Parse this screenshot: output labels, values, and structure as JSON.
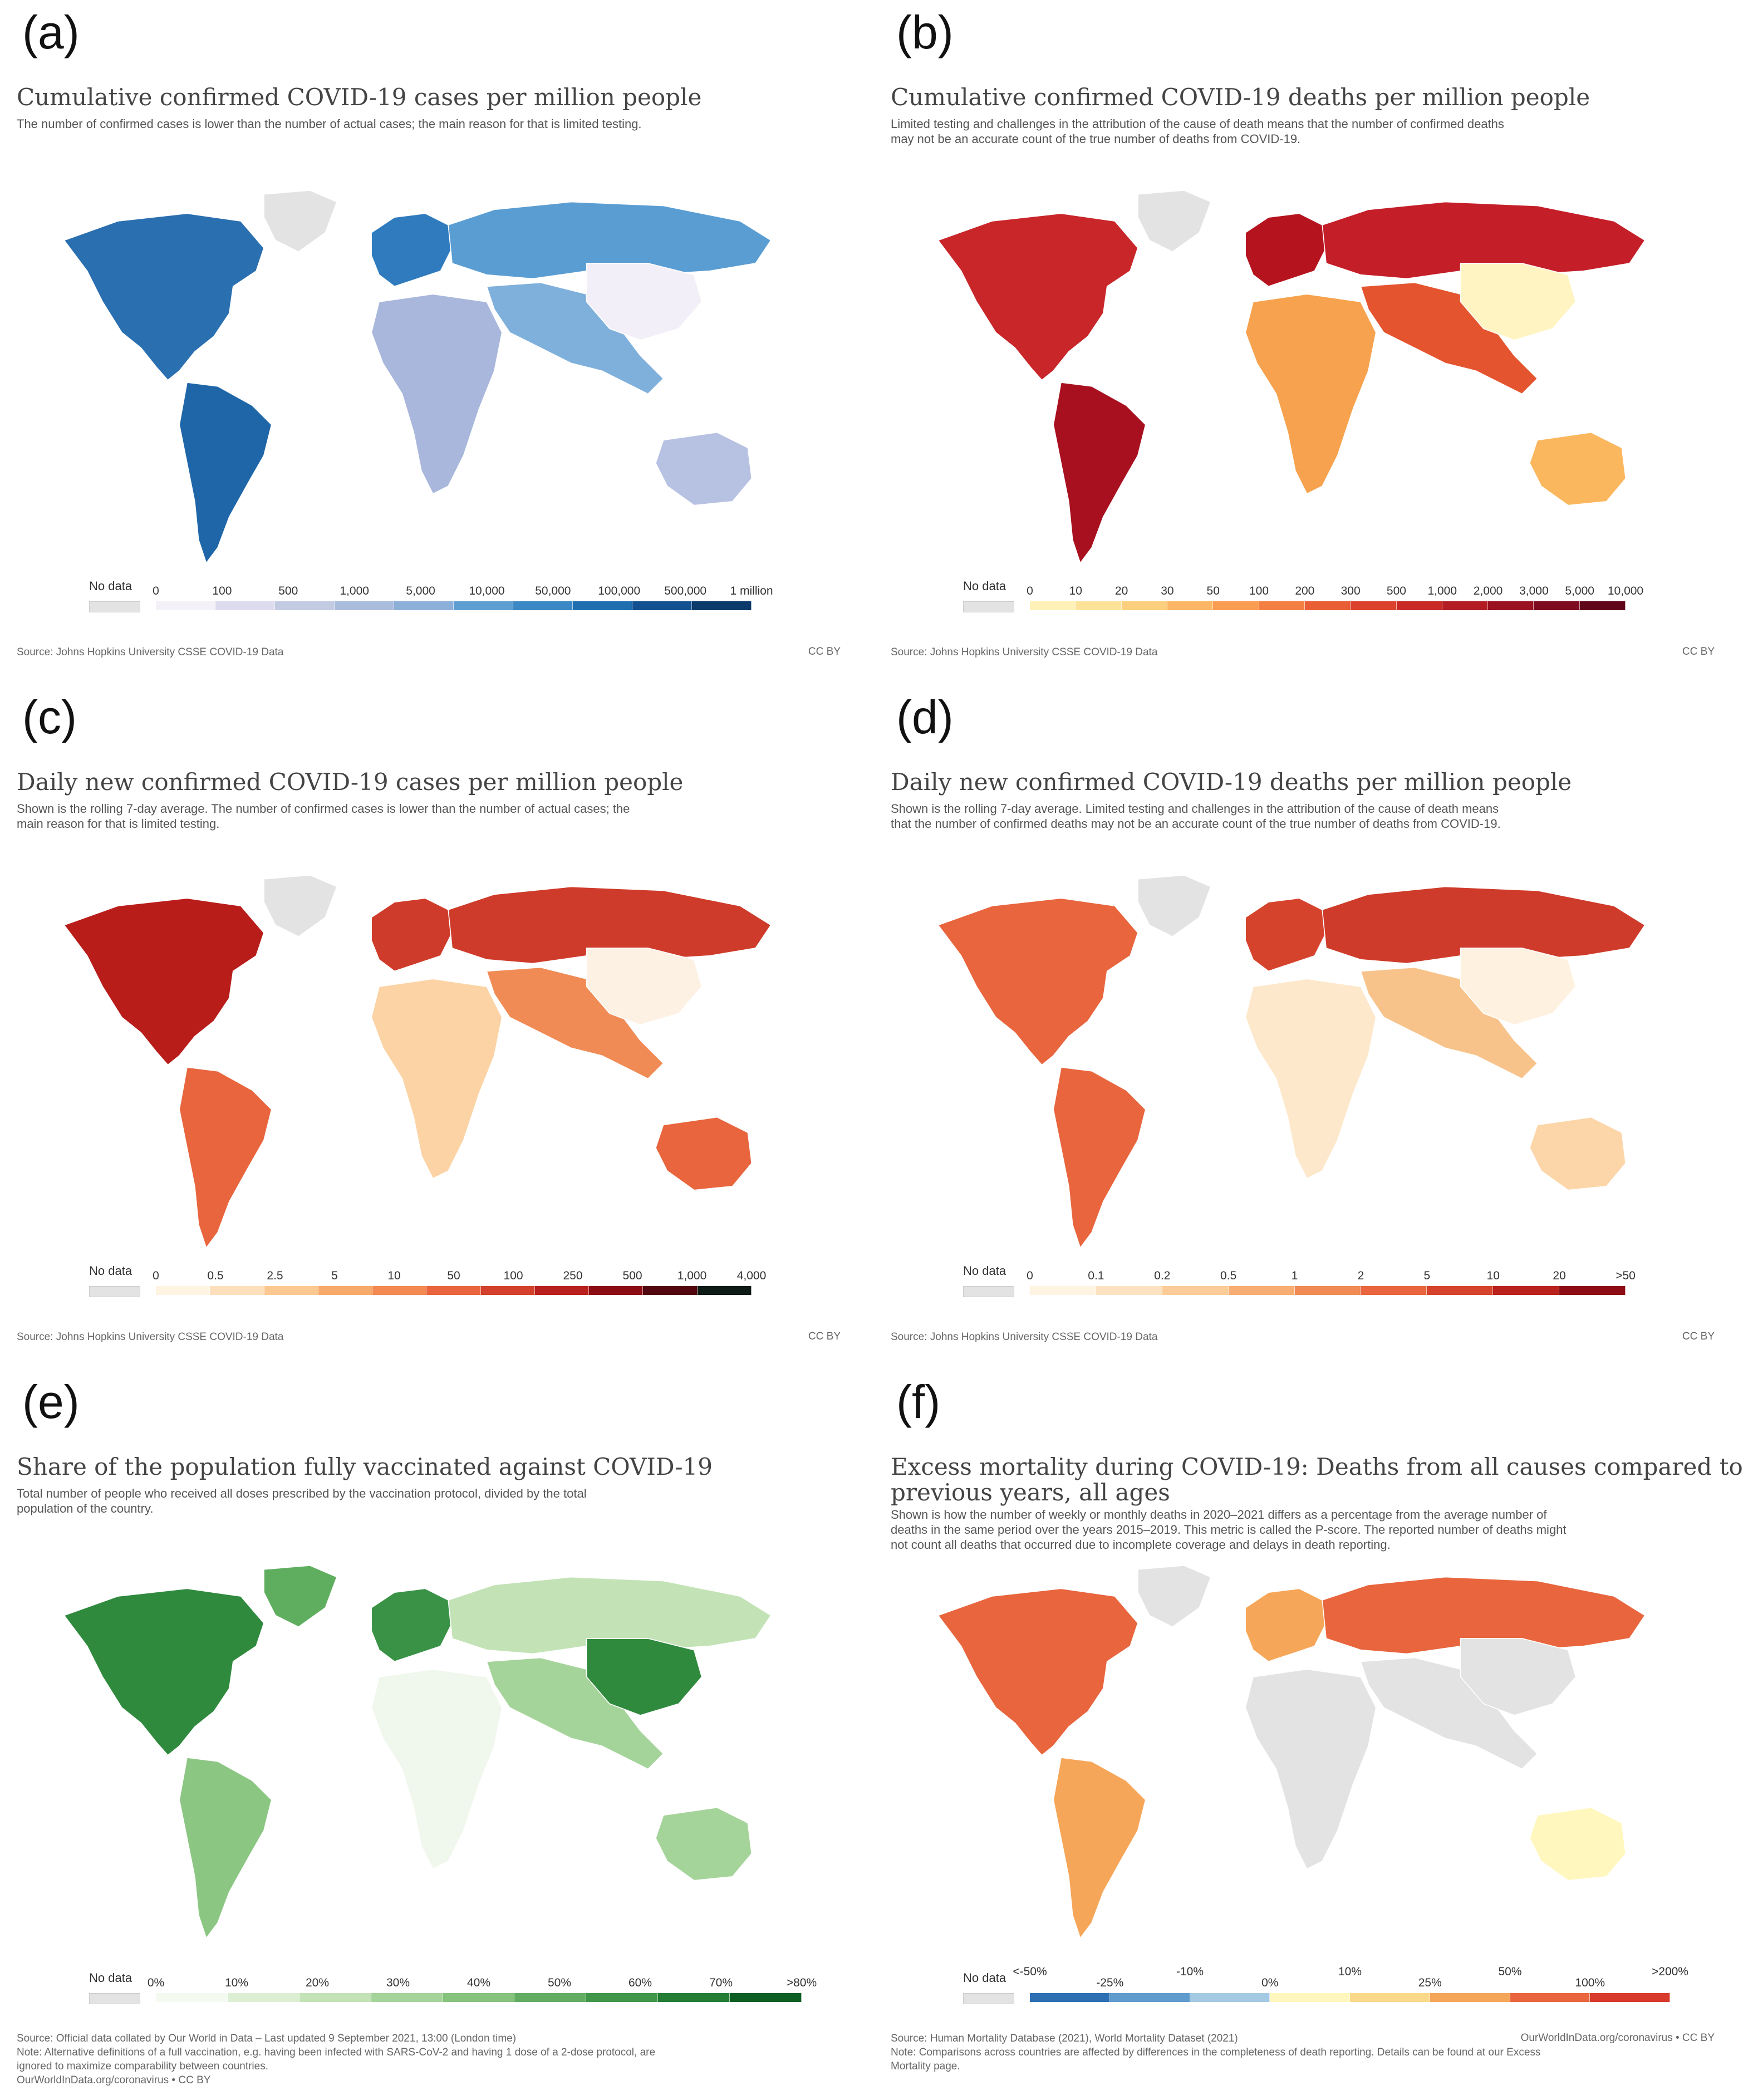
{
  "panels": [
    {
      "id": "a",
      "letter": "(a)",
      "title": "Cumulative confirmed COVID-19 cases per million people",
      "subtitle": [
        "The number of confirmed cases is lower than the number of actual cases; the main reason for that is limited testing."
      ],
      "nodata": "No data",
      "ticks": [
        "0",
        "100",
        "500",
        "1,000",
        "5,000",
        "10,000",
        "50,000",
        "100,000",
        "500,000",
        "1 million"
      ],
      "colors": [
        "#f4f1f9",
        "#dcdcee",
        "#c3cbe3",
        "#a9bcdc",
        "#8cb0d8",
        "#5f9ed0",
        "#3b88c4",
        "#1f6eb0",
        "#12508f",
        "#0b3a6b"
      ],
      "palette": {
        "land_default": "#6aa6d6",
        "north_america": "#2a6fb0",
        "south_america": "#1f66a8",
        "europe": "#2f7bbe",
        "russia": "#5a9dd2",
        "africa": "#a9b7dc",
        "asia": "#7fb0db",
        "china": "#f3eff8",
        "oceania": "#b7c2e2",
        "greenland": "#e3e3e3"
      },
      "source": "Source: Johns Hopkins University CSSE COVID-19 Data",
      "license": "CC BY"
    },
    {
      "id": "b",
      "letter": "(b)",
      "title": "Cumulative confirmed COVID-19 deaths per million people",
      "subtitle": [
        "Limited testing and challenges in the attribution of the cause of death means that the number of confirmed deaths",
        "may not be an accurate count of the true number of deaths from COVID-19."
      ],
      "nodata": "No data",
      "ticks": [
        "0",
        "10",
        "20",
        "30",
        "50",
        "100",
        "200",
        "300",
        "500",
        "1,000",
        "2,000",
        "3,000",
        "5,000",
        "10,000"
      ],
      "colors": [
        "#fff1b8",
        "#fde29a",
        "#fccf7e",
        "#fbb765",
        "#f99d52",
        "#f47f43",
        "#ea5e36",
        "#db412c",
        "#c92a26",
        "#b31c23",
        "#9a1122",
        "#7e0a1f",
        "#61061a"
      ],
      "palette": {
        "land_default": "#d23a2e",
        "north_america": "#c9262a",
        "south_america": "#a8101f",
        "europe": "#b5141f",
        "russia": "#c41e28",
        "africa": "#f7a24e",
        "asia": "#e4542f",
        "china": "#fff4c2",
        "oceania": "#fbb75e",
        "greenland": "#e3e3e3"
      },
      "source": "Source: Johns Hopkins University CSSE COVID-19 Data",
      "license": "CC BY"
    },
    {
      "id": "c",
      "letter": "(c)",
      "title": "Daily new confirmed COVID-19 cases per million people",
      "subtitle": [
        "Shown is the rolling 7-day average. The number of confirmed cases is lower than the number of actual cases; the",
        "main reason for that is limited testing."
      ],
      "nodata": "No data",
      "ticks": [
        "0",
        "0.5",
        "2.5",
        "5",
        "10",
        "50",
        "100",
        "250",
        "500",
        "1,000",
        "4,000"
      ],
      "colors": [
        "#fff3e2",
        "#fde0bb",
        "#fbc891",
        "#f8aa6c",
        "#f28a52",
        "#e8653d",
        "#d3412c",
        "#b8211d",
        "#8d0d14",
        "#520610",
        "#0e1a16"
      ],
      "palette": {
        "land_default": "#e8653d",
        "north_america": "#b81d1a",
        "south_america": "#e8653d",
        "europe": "#cf3b2a",
        "russia": "#cf3b2a",
        "africa": "#fbd3a5",
        "asia": "#f08b55",
        "china": "#fdf1e3",
        "oceania": "#e8653d",
        "greenland": "#e3e3e3"
      },
      "source": "Source: Johns Hopkins University CSSE COVID-19 Data",
      "license": "CC BY"
    },
    {
      "id": "d",
      "letter": "(d)",
      "title": "Daily new confirmed COVID-19 deaths per million people",
      "subtitle": [
        "Shown is the rolling 7-day average. Limited testing and challenges in the attribution of the cause of death means",
        "that the number of confirmed deaths may not be an accurate count of the true number of deaths from COVID-19."
      ],
      "nodata": "No data",
      "ticks": [
        "0",
        "0.1",
        "0.2",
        "0.5",
        "1",
        "2",
        "5",
        "10",
        "20",
        ">50"
      ],
      "colors": [
        "#fff3e2",
        "#fde2c1",
        "#fbcc98",
        "#f8ae72",
        "#f18b55",
        "#e8653d",
        "#d5432c",
        "#b9221d",
        "#8c0b14"
      ],
      "palette": {
        "land_default": "#f8ae72",
        "north_america": "#e8653d",
        "south_america": "#e8653d",
        "europe": "#d5432c",
        "russia": "#cf3b2a",
        "africa": "#fde8cc",
        "asia": "#f8c38b",
        "china": "#fff1e0",
        "oceania": "#fcd6a8",
        "greenland": "#e3e3e3"
      },
      "source": "Source: Johns Hopkins University CSSE COVID-19 Data",
      "license": "CC BY"
    },
    {
      "id": "e",
      "letter": "(e)",
      "title": "Share of the population fully vaccinated against COVID-19",
      "subtitle": [
        "Total number of people who received all doses prescribed by the vaccination protocol, divided by the total",
        "population of the country."
      ],
      "nodata": "No data",
      "ticks": [
        "0%",
        "10%",
        "20%",
        "30%",
        "40%",
        "50%",
        "60%",
        "70%",
        ">80%"
      ],
      "colors": [
        "#f4faf0",
        "#dcefd3",
        "#c3e3b7",
        "#a5d49a",
        "#86c37d",
        "#63ad63",
        "#419749",
        "#237d35",
        "#0d5e23"
      ],
      "palette": {
        "land_default": "#a5d49a",
        "north_america": "#2f8a3d",
        "south_america": "#8cc683",
        "europe": "#3a9246",
        "russia": "#c3e3b7",
        "africa": "#f0f7ec",
        "asia": "#a5d49a",
        "china": "#2f8a3d",
        "oceania": "#a5d49a",
        "greenland": "#5fae60"
      },
      "source": "Source: Official data collated by Our World in Data – Last updated 9 September 2021, 13:00 (London time)",
      "source_lines": [
        "Note: Alternative definitions of a full vaccination, e.g. having been infected with SARS-CoV-2 and having 1 dose of a 2-dose protocol, are",
        "ignored to maximize comparability between countries.",
        "OurWorldInData.org/coronavirus • CC BY"
      ],
      "license": ""
    },
    {
      "id": "f",
      "letter": "(f)",
      "title": "Excess mortality during COVID-19: Deaths from all causes compared to",
      "title2": "previous years, all ages",
      "subtitle": [
        "Shown is how the number of weekly or monthly deaths in 2020–2021 differs as a percentage from the average number of",
        "deaths in the same period over the years 2015–2019. This metric is called the P-score. The reported number of deaths might",
        "not count all deaths that occurred due to incomplete coverage and delays in death reporting."
      ],
      "nodata": "No data",
      "ticks": [
        "<-50%",
        "-25%",
        "-10%",
        "0%",
        "10%",
        "25%",
        "50%",
        "100%",
        ">200%"
      ],
      "colors": [
        "#2c6fb3",
        "#5f9bcc",
        "#a3c9e3",
        "#fff7bd",
        "#fbd98a",
        "#f6a659",
        "#e8653d",
        "#d83a2c"
      ],
      "palette": {
        "land_default": "#e3e3e3",
        "north_america": "#e8653d",
        "south_america": "#f6a659",
        "europe": "#f6a659",
        "russia": "#e8653d",
        "africa": "#e3e3e3",
        "asia": "#e3e3e3",
        "china": "#e3e3e3",
        "oceania": "#fff7bd",
        "greenland": "#e3e3e3"
      },
      "source": "Source: Human Mortality Database (2021), World Mortality Dataset (2021)",
      "source_lines": [
        "Note: Comparisons across countries are affected by differences in the completeness of death reporting. Details can be found at our Excess",
        "Mortality page."
      ],
      "license": "OurWorldInData.org/coronavirus • CC BY"
    }
  ]
}
